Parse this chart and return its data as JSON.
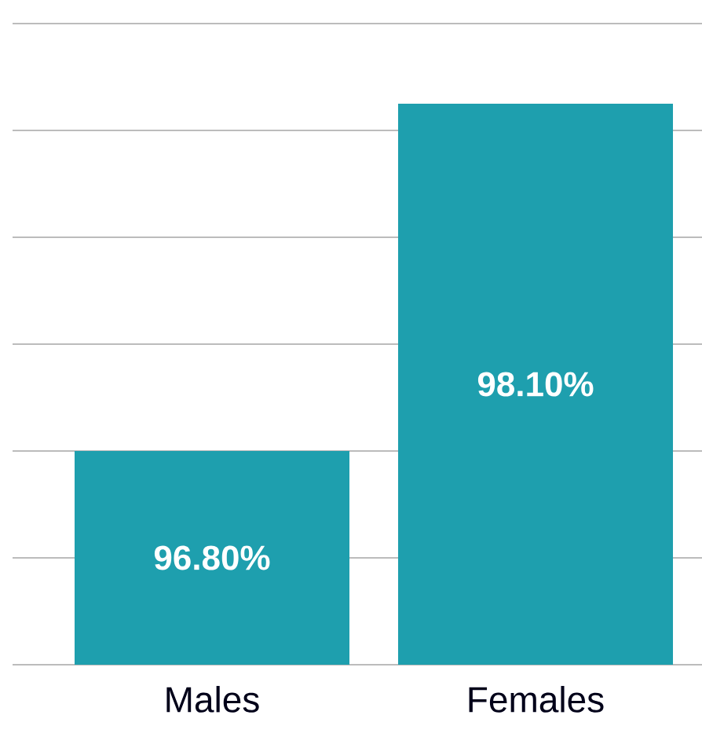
{
  "chart_data": {
    "type": "bar",
    "categories": [
      "Males",
      "Females"
    ],
    "values": [
      96.8,
      98.1
    ],
    "value_labels": [
      "96.80%",
      "98.10%"
    ],
    "color": "#1e9fae",
    "ylim": [
      96,
      98.4
    ],
    "yticks": [
      {
        "value": 96,
        "label": null
      },
      {
        "value": 96.4,
        "label": null
      },
      {
        "value": 96.8,
        "label": null
      },
      {
        "value": 97.2,
        "label": null
      },
      {
        "value": 97.6,
        "label": null
      },
      {
        "value": 98.0,
        "label": null
      },
      {
        "value": 98.4,
        "label": null
      }
    ],
    "grid": "y",
    "tick_labels": "x"
  }
}
